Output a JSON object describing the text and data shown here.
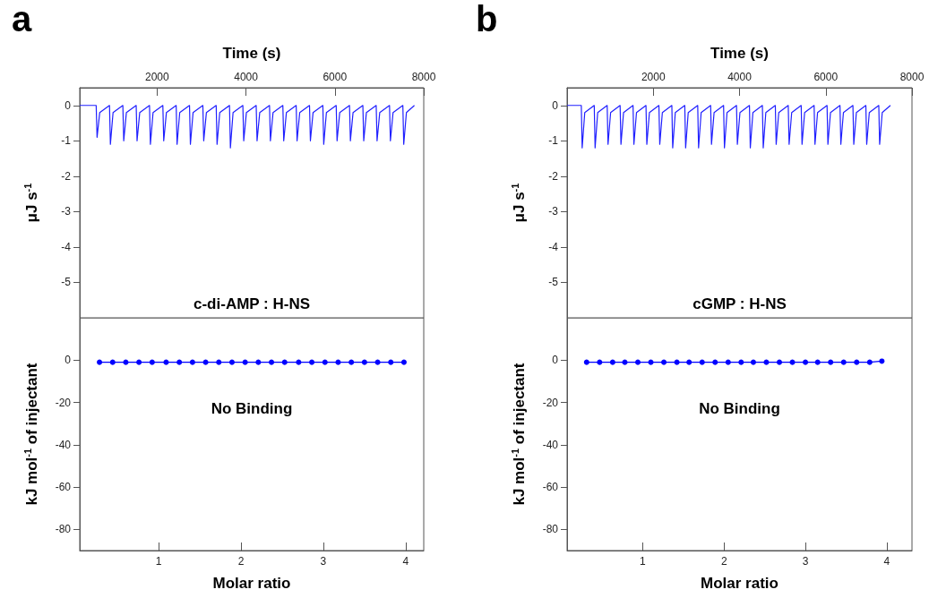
{
  "chart_data": [
    {
      "type": "line",
      "title": "a",
      "xlabel": "Time (s)",
      "ylabel": "μJ s$^{-1}$",
      "annotations": [
        "c-di-AMP : H-NS"
      ],
      "marker": "none",
      "color": "#1f1fff",
      "x": [
        260,
        630,
        650,
        710,
        930,
        950,
        1010,
        1230,
        1250,
        1310,
        1530,
        1550,
        1610,
        1830,
        1850,
        1910,
        2130,
        2150,
        2210,
        2430,
        2450,
        2510,
        2730,
        2750,
        2810,
        3030,
        3050,
        3110,
        3330,
        3350,
        3410,
        3630,
        3650,
        3710,
        3930,
        3950,
        4010,
        4230,
        4250,
        4310,
        4530,
        4550,
        4610,
        4830,
        4850,
        4910,
        5130,
        5150,
        5210,
        5430,
        5450,
        5510,
        5730,
        5750,
        5810,
        6030,
        6050,
        6110,
        6330,
        6350,
        6410,
        6630,
        6650,
        6710,
        6930,
        6950,
        7010,
        7230,
        7250,
        7310,
        7530,
        7550,
        7610,
        7790
      ],
      "values": [
        0,
        0,
        -0.9,
        -0.2,
        0,
        -1.1,
        -0.2,
        0,
        -1.0,
        -0.2,
        0,
        -1.0,
        -0.2,
        0,
        -1.1,
        -0.2,
        0,
        -1.0,
        -0.2,
        0,
        -1.1,
        -0.2,
        0,
        -1.1,
        -0.2,
        0,
        -1.0,
        -0.2,
        0,
        -1.1,
        -0.2,
        0,
        -1.2,
        -0.2,
        0,
        -1.0,
        -0.2,
        0,
        -1.0,
        -0.2,
        0,
        -1.0,
        -0.2,
        0,
        -1.0,
        -0.2,
        0,
        -1.0,
        -0.2,
        0,
        -1.0,
        -0.2,
        0,
        -1.1,
        -0.2,
        0,
        -1.0,
        -0.2,
        0,
        -1.0,
        -0.2,
        0,
        -1.0,
        -0.2,
        0,
        -1.0,
        -0.2,
        0,
        -1.0,
        -0.2,
        0,
        -1.1,
        -0.2,
        0
      ],
      "xlim": [
        260,
        8000
      ],
      "xticks": [
        2000,
        4000,
        6000,
        8000
      ],
      "ylim": [
        -6,
        0.5
      ],
      "yticks": [
        0,
        -1,
        -2,
        -3,
        -4,
        -5
      ]
    },
    {
      "type": "line",
      "xlabel": "Molar ratio",
      "ylabel": "kJ mol$^{-1}$ of injectant",
      "annotations": [
        "No Binding"
      ],
      "marker": "circle",
      "color": "#0000ff",
      "x": [
        0.28,
        0.44,
        0.6,
        0.76,
        0.92,
        1.09,
        1.25,
        1.41,
        1.57,
        1.73,
        1.89,
        2.05,
        2.21,
        2.37,
        2.53,
        2.7,
        2.86,
        3.02,
        3.18,
        3.34,
        3.5,
        3.66,
        3.82,
        3.98
      ],
      "values": [
        -1,
        -1,
        -1,
        -1,
        -1,
        -1,
        -1,
        -1,
        -1,
        -1,
        -1,
        -1,
        -1,
        -1,
        -1,
        -1,
        -1,
        -1,
        -1,
        -1,
        -1,
        -1,
        -1,
        -1
      ],
      "xlim": [
        0.04,
        4.22
      ],
      "xticks": [
        1,
        2,
        3,
        4
      ],
      "ylim": [
        -90,
        20
      ],
      "yticks": [
        0,
        -20,
        -40,
        -60,
        -80
      ]
    },
    {
      "type": "line",
      "title": "b",
      "xlabel": "Time (s)",
      "ylabel": "μJ s$^{-1}$",
      "annotations": [
        "cGMP : H-NS"
      ],
      "marker": "none",
      "color": "#1f1fff",
      "x": [
        0,
        330,
        350,
        410,
        630,
        650,
        710,
        930,
        950,
        1010,
        1230,
        1250,
        1310,
        1530,
        1550,
        1610,
        1830,
        1850,
        1910,
        2130,
        2150,
        2210,
        2430,
        2450,
        2510,
        2730,
        2750,
        2810,
        3030,
        3050,
        3110,
        3330,
        3350,
        3410,
        3630,
        3650,
        3710,
        3930,
        3950,
        4010,
        4230,
        4250,
        4310,
        4530,
        4550,
        4610,
        4830,
        4850,
        4910,
        5130,
        5150,
        5210,
        5430,
        5450,
        5510,
        5730,
        5750,
        5810,
        6030,
        6050,
        6110,
        6330,
        6350,
        6410,
        6630,
        6650,
        6710,
        6930,
        6950,
        7010,
        7230,
        7250,
        7310,
        7500
      ],
      "values": [
        0,
        0,
        -1.2,
        -0.2,
        0,
        -1.2,
        -0.2,
        0,
        -1.1,
        -0.2,
        0,
        -1.1,
        -0.2,
        0,
        -1.1,
        -0.2,
        0,
        -1.1,
        -0.2,
        0,
        -1.1,
        -0.2,
        0,
        -1.2,
        -0.2,
        0,
        -1.2,
        -0.2,
        0,
        -1.2,
        -0.2,
        0,
        -1.1,
        -0.2,
        0,
        -1.2,
        -0.2,
        0,
        -1.1,
        -0.2,
        0,
        -1.2,
        -0.2,
        0,
        -1.2,
        -0.2,
        0,
        -1.1,
        -0.2,
        0,
        -1.1,
        -0.2,
        0,
        -1.1,
        -0.2,
        0,
        -1.1,
        -0.2,
        0,
        -1.1,
        -0.2,
        0,
        -1.1,
        -0.2,
        0,
        -1.1,
        -0.2,
        0,
        -1.1,
        -0.2,
        0,
        -1.1,
        -0.2,
        0
      ],
      "xlim": [
        0,
        8000
      ],
      "xticks": [
        2000,
        4000,
        6000,
        8000
      ],
      "ylim": [
        -6,
        0.5
      ],
      "yticks": [
        0,
        -1,
        -2,
        -3,
        -4,
        -5
      ]
    },
    {
      "type": "line",
      "xlabel": "Molar ratio",
      "ylabel": "kJ mol$^{-1}$ of injectant",
      "annotations": [
        "No Binding"
      ],
      "marker": "circle",
      "color": "#0000ff",
      "x": [
        0.31,
        0.47,
        0.63,
        0.78,
        0.94,
        1.1,
        1.26,
        1.42,
        1.57,
        1.73,
        1.89,
        2.05,
        2.21,
        2.36,
        2.52,
        2.68,
        2.84,
        3.0,
        3.15,
        3.31,
        3.47,
        3.63,
        3.79,
        3.94
      ],
      "values": [
        -1,
        -1,
        -1,
        -1,
        -1,
        -1,
        -1,
        -1,
        -1,
        -1,
        -1,
        -1,
        -1,
        -1,
        -1,
        -1,
        -1,
        -1,
        -1,
        -1,
        -1,
        -1,
        -1,
        -0.5
      ],
      "xlim": [
        0.07,
        4.31
      ],
      "xticks": [
        1,
        2,
        3,
        4
      ],
      "ylim": [
        -90,
        20
      ],
      "yticks": [
        0,
        -20,
        -40,
        -60,
        -80
      ]
    }
  ]
}
